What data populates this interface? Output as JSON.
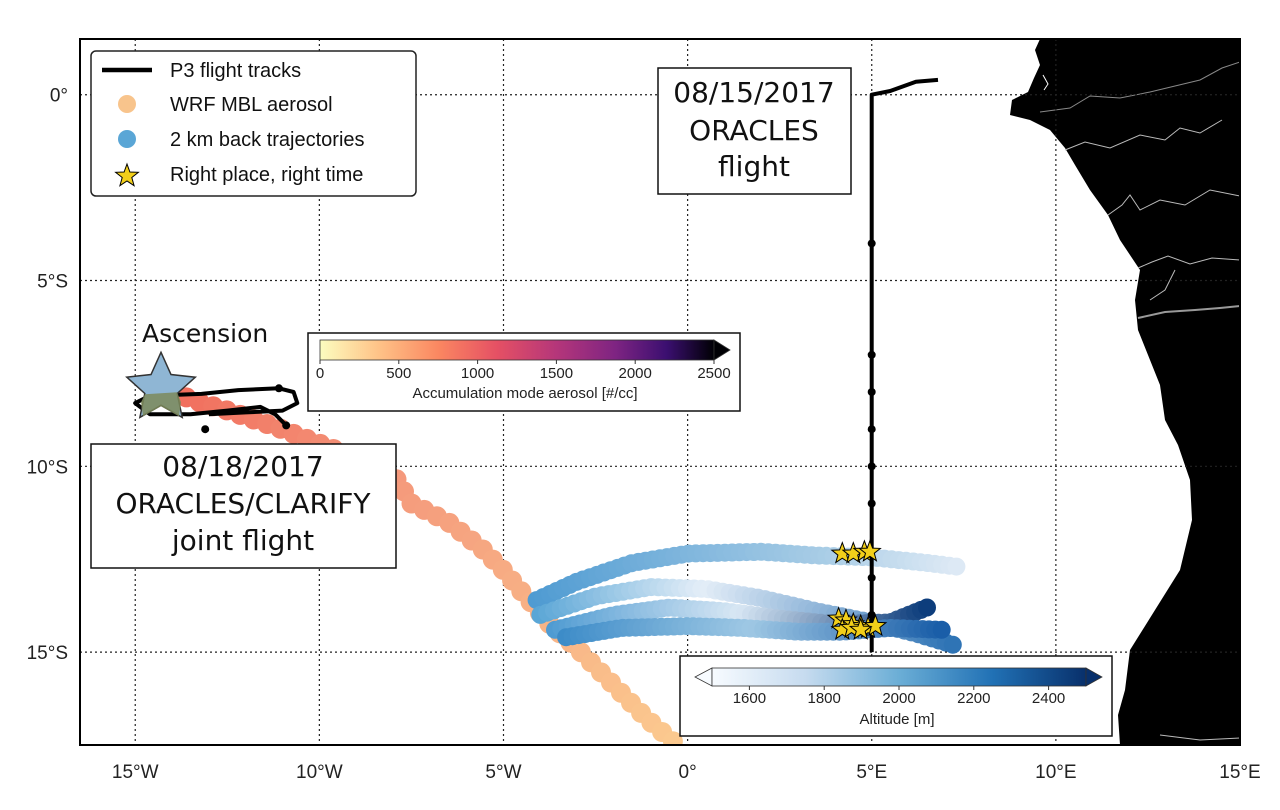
{
  "axes": {
    "x_ticks": [
      "15°W",
      "10°W",
      "5°W",
      "0°",
      "5°E",
      "10°E",
      "15°E"
    ],
    "y_ticks": [
      "0°",
      "5°S",
      "10°S",
      "15°S"
    ]
  },
  "legend": {
    "items": [
      {
        "label": "P3 flight tracks",
        "symbol": "line",
        "color": "#000000"
      },
      {
        "label": "WRF MBL aerosol",
        "symbol": "circle",
        "color": "#f8c48c"
      },
      {
        "label": "2 km back trajectories",
        "symbol": "circle",
        "color": "#5aa6d6"
      },
      {
        "label": "Right place, right time",
        "symbol": "star",
        "color": "#f2cf1a"
      }
    ]
  },
  "annotations": {
    "flight_0815": [
      "08/15/2017",
      "ORACLES",
      "flight"
    ],
    "flight_0818": [
      "08/18/2017",
      "ORACLES/CLARIFY",
      "joint flight"
    ],
    "ascension_label": "Ascension"
  },
  "colorbar_aerosol": {
    "ticks": [
      "0",
      "500",
      "1000",
      "1500",
      "2000",
      "2500"
    ],
    "label": "Accumulation mode aerosol [#/cc]",
    "colormap": "magma_r"
  },
  "colorbar_altitude": {
    "ticks": [
      "1600",
      "1800",
      "2000",
      "2200",
      "2400"
    ],
    "label": "Altitude [m]",
    "colormap": "Blues"
  },
  "chart_data": {
    "type": "scatter",
    "xlim": [
      -16.5,
      15
    ],
    "ylim": [
      -17.5,
      1.5
    ],
    "grid": true,
    "legend_position": "top-left",
    "series": [
      {
        "name": "P3 flight tracks",
        "tracks": [
          [
            [
              5.0,
              -15.0
            ],
            [
              5.0,
              0.0
            ],
            [
              5.5,
              0.1
            ],
            [
              6.2,
              0.35
            ],
            [
              6.8,
              0.4
            ]
          ],
          [
            [
              -10.9,
              -8.9
            ],
            [
              -11.2,
              -8.6
            ],
            [
              -11.6,
              -8.4
            ],
            [
              -12.5,
              -8.5
            ],
            [
              -13.5,
              -8.6
            ],
            [
              -14.6,
              -8.6
            ],
            [
              -15.0,
              -8.3
            ],
            [
              -14.6,
              -8.1
            ],
            [
              -13.2,
              -8.05
            ],
            [
              -12.2,
              -7.95
            ],
            [
              -11.1,
              -7.9
            ],
            [
              -10.7,
              -8.0
            ],
            [
              -10.6,
              -8.3
            ],
            [
              -11.0,
              -8.5
            ],
            [
              -12.0,
              -8.55
            ],
            [
              -13.0,
              -8.6
            ]
          ]
        ],
        "markers": [
          [
            5.0,
            -4.0
          ],
          [
            5.0,
            -7.0
          ],
          [
            5.0,
            -8.0
          ],
          [
            5.0,
            -9.0
          ],
          [
            5.0,
            -10.0
          ],
          [
            5.0,
            -11.0
          ],
          [
            5.0,
            -13.0
          ],
          [
            5.0,
            -14.0
          ],
          [
            -11.1,
            -7.9
          ],
          [
            -13.1,
            -9.0
          ],
          [
            -10.9,
            -8.9
          ],
          [
            -14.2,
            -8.1
          ]
        ]
      },
      {
        "name": "WRF MBL aerosol",
        "path": [
          [
            -14.3,
            -7.8
          ],
          [
            -13.5,
            -8.2
          ],
          [
            -12.5,
            -8.5
          ],
          [
            -11.3,
            -8.9
          ],
          [
            -10.5,
            -9.2
          ],
          [
            -9.7,
            -9.5
          ],
          [
            -8.0,
            -10.2
          ],
          [
            -7.5,
            -11.0
          ],
          [
            -6.5,
            -11.5
          ],
          [
            -5.6,
            -12.2
          ],
          [
            -5.0,
            -12.8
          ],
          [
            -4.4,
            -13.5
          ],
          [
            -3.7,
            -14.3
          ],
          [
            -3.0,
            -14.9
          ],
          [
            -2.4,
            -15.5
          ],
          [
            -1.7,
            -16.2
          ],
          [
            -1.1,
            -16.8
          ],
          [
            -0.4,
            -17.4
          ]
        ],
        "value_range_cc": [
          100,
          900
        ]
      },
      {
        "name": "2 km back trajectories",
        "tracks": [
          [
            [
              -4.1,
              -13.6
            ],
            [
              -3.0,
              -13.1
            ],
            [
              -1.5,
              -12.6
            ],
            [
              0,
              -12.35
            ],
            [
              2.0,
              -12.3
            ],
            [
              3.5,
              -12.4
            ],
            [
              5.0,
              -12.45
            ],
            [
              6.5,
              -12.6
            ],
            [
              7.3,
              -12.7
            ]
          ],
          [
            [
              -4.0,
              -14.0
            ],
            [
              -2.5,
              -13.5
            ],
            [
              -1.0,
              -13.25
            ],
            [
              0.5,
              -13.3
            ],
            [
              2.0,
              -13.55
            ],
            [
              3.5,
              -13.9
            ],
            [
              5.0,
              -14.2
            ],
            [
              6.2,
              -14.5
            ],
            [
              7.2,
              -14.8
            ]
          ],
          [
            [
              -3.6,
              -14.4
            ],
            [
              -2.0,
              -14.0
            ],
            [
              -0.5,
              -13.8
            ],
            [
              1.0,
              -13.9
            ],
            [
              2.5,
              -14.1
            ],
            [
              4.0,
              -14.25
            ],
            [
              5.5,
              -14.2
            ],
            [
              6.5,
              -13.8
            ]
          ],
          [
            [
              -3.3,
              -14.6
            ],
            [
              -1.8,
              -14.35
            ],
            [
              0,
              -14.3
            ],
            [
              1.5,
              -14.35
            ],
            [
              3.0,
              -14.45
            ],
            [
              4.2,
              -14.45
            ],
            [
              5.5,
              -14.35
            ],
            [
              6.9,
              -14.4
            ]
          ]
        ],
        "altitude_range_m": [
          1550,
          2500
        ]
      },
      {
        "name": "Right place, right time",
        "points": [
          [
            4.2,
            -12.35
          ],
          [
            4.5,
            -12.35
          ],
          [
            4.8,
            -12.3
          ],
          [
            4.95,
            -12.3
          ],
          [
            4.1,
            -14.1
          ],
          [
            4.3,
            -14.15
          ],
          [
            4.5,
            -14.25
          ],
          [
            4.7,
            -14.3
          ],
          [
            4.9,
            -14.35
          ],
          [
            5.1,
            -14.3
          ],
          [
            4.2,
            -14.4
          ],
          [
            4.45,
            -14.35
          ],
          [
            4.7,
            -14.4
          ]
        ]
      }
    ],
    "ascension_location": [
      -14.3,
      -7.9
    ]
  }
}
